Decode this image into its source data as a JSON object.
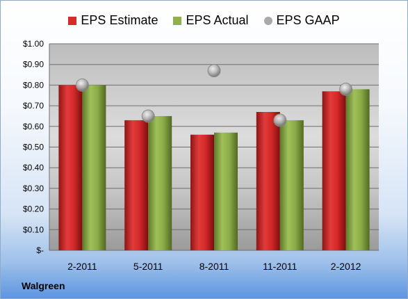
{
  "chart_data": {
    "type": "bar",
    "title": "",
    "xlabel": "",
    "ylabel": "",
    "categories": [
      "2-2011",
      "5-2011",
      "8-2011",
      "11-2011",
      "2-2012"
    ],
    "series": [
      {
        "name": "EPS Estimate",
        "kind": "bar",
        "color": "#d42b2b",
        "values": [
          0.8,
          0.63,
          0.56,
          0.67,
          0.77
        ]
      },
      {
        "name": "EPS Actual",
        "kind": "bar",
        "color": "#8fb04a",
        "values": [
          0.8,
          0.65,
          0.57,
          0.63,
          0.78
        ]
      },
      {
        "name": "EPS GAAP",
        "kind": "marker",
        "color": "#a9a9a9",
        "values": [
          0.8,
          0.65,
          0.87,
          0.63,
          0.78
        ]
      }
    ],
    "ylim": [
      0,
      1.0
    ],
    "yticks": [
      0,
      0.1,
      0.2,
      0.3,
      0.4,
      0.5,
      0.6,
      0.7,
      0.8,
      0.9,
      1.0
    ],
    "ytick_labels": [
      "$-",
      "$0.10",
      "$0.20",
      "$0.30",
      "$0.40",
      "$0.50",
      "$0.60",
      "$0.70",
      "$0.80",
      "$0.90",
      "$1.00"
    ],
    "grid": true,
    "legend_position": "top"
  },
  "footer": {
    "brand": "Walgreen"
  }
}
